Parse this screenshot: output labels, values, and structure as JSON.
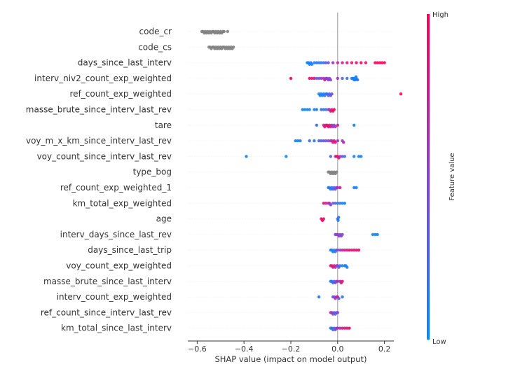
{
  "chart_data": {
    "type": "scatter",
    "subtype": "shap-beeswarm",
    "xlabel": "SHAP value (impact on model output)",
    "xlim": [
      -0.64,
      0.24
    ],
    "xticks": [
      -0.6,
      -0.4,
      -0.2,
      0.0,
      0.2
    ],
    "xtick_labels": [
      "−0.6",
      "−0.4",
      "−0.2",
      "0.0",
      "0.2"
    ],
    "colorbar": {
      "label": "Feature value",
      "high_label": "High",
      "low_label": "Low",
      "high_color": "#ff0052",
      "low_color": "#008bfb",
      "placement": "right"
    },
    "zero_line": true,
    "colors": {
      "no_value": "#808080"
    },
    "features": [
      {
        "name": "code_cr",
        "points": [
          [
            -0.58,
            null
          ],
          [
            -0.575,
            null
          ],
          [
            -0.57,
            null
          ],
          [
            -0.565,
            null
          ],
          [
            -0.56,
            null
          ],
          [
            -0.555,
            null
          ],
          [
            -0.55,
            null
          ],
          [
            -0.545,
            null
          ],
          [
            -0.54,
            null
          ],
          [
            -0.535,
            null
          ],
          [
            -0.53,
            null
          ],
          [
            -0.525,
            null
          ],
          [
            -0.52,
            null
          ],
          [
            -0.515,
            null
          ],
          [
            -0.51,
            null
          ],
          [
            -0.505,
            null
          ],
          [
            -0.5,
            null
          ],
          [
            -0.495,
            null
          ],
          [
            -0.49,
            null
          ],
          [
            -0.485,
            null
          ],
          [
            -0.47,
            null
          ]
        ]
      },
      {
        "name": "code_cs",
        "points": [
          [
            -0.55,
            null
          ],
          [
            -0.545,
            null
          ],
          [
            -0.54,
            null
          ],
          [
            -0.535,
            null
          ],
          [
            -0.53,
            null
          ],
          [
            -0.525,
            null
          ],
          [
            -0.52,
            null
          ],
          [
            -0.515,
            null
          ],
          [
            -0.51,
            null
          ],
          [
            -0.505,
            null
          ],
          [
            -0.5,
            null
          ],
          [
            -0.495,
            null
          ],
          [
            -0.49,
            null
          ],
          [
            -0.485,
            null
          ],
          [
            -0.48,
            null
          ],
          [
            -0.475,
            null
          ],
          [
            -0.47,
            null
          ],
          [
            -0.465,
            null
          ],
          [
            -0.46,
            null
          ],
          [
            -0.455,
            null
          ],
          [
            -0.45,
            null
          ],
          [
            -0.445,
            null
          ]
        ]
      },
      {
        "name": "days_since_last_interv",
        "points": [
          [
            -0.13,
            0.05
          ],
          [
            -0.125,
            0.1
          ],
          [
            -0.12,
            0.05
          ],
          [
            -0.115,
            0.15
          ],
          [
            -0.11,
            0.1
          ],
          [
            -0.1,
            0.08
          ],
          [
            -0.09,
            0.2
          ],
          [
            -0.08,
            0.1
          ],
          [
            -0.07,
            0.1
          ],
          [
            -0.06,
            0.25
          ],
          [
            -0.05,
            0.3
          ],
          [
            -0.04,
            0.4
          ],
          [
            -0.02,
            0.6
          ],
          [
            0.0,
            0.7
          ],
          [
            0.02,
            0.75
          ],
          [
            0.04,
            0.8
          ],
          [
            0.06,
            0.9
          ],
          [
            0.08,
            0.92
          ],
          [
            0.1,
            0.95
          ],
          [
            0.12,
            0.9
          ],
          [
            0.16,
            0.95
          ],
          [
            0.17,
            1.0
          ],
          [
            0.18,
            0.95
          ],
          [
            0.19,
            1.0
          ],
          [
            0.2,
            0.95
          ]
        ]
      },
      {
        "name": "interv_niv2_count_exp_weighted",
        "points": [
          [
            -0.2,
            1.0
          ],
          [
            -0.12,
            0.9
          ],
          [
            -0.11,
            0.85
          ],
          [
            -0.1,
            0.9
          ],
          [
            -0.09,
            0.3
          ],
          [
            -0.08,
            0.4
          ],
          [
            -0.07,
            0.6
          ],
          [
            -0.06,
            0.65
          ],
          [
            -0.055,
            0.7
          ],
          [
            -0.05,
            0.55
          ],
          [
            -0.045,
            0.6
          ],
          [
            -0.04,
            0.5
          ],
          [
            -0.035,
            0.55
          ],
          [
            -0.03,
            0.5
          ],
          [
            0.0,
            0.6
          ],
          [
            0.02,
            0.3
          ],
          [
            0.04,
            0.2
          ],
          [
            0.06,
            0.1
          ],
          [
            0.065,
            0.05
          ],
          [
            0.07,
            0.05
          ],
          [
            0.072,
            0.1
          ],
          [
            0.075,
            0.05
          ],
          [
            0.078,
            0.05
          ],
          [
            0.08,
            0.1
          ],
          [
            0.085,
            0.1
          ]
        ]
      },
      {
        "name": "ref_count_exp_weighted",
        "points": [
          [
            -0.08,
            0.1
          ],
          [
            -0.075,
            0.05
          ],
          [
            -0.07,
            0.1
          ],
          [
            -0.065,
            0.05
          ],
          [
            -0.06,
            0.1
          ],
          [
            -0.055,
            0.15
          ],
          [
            -0.05,
            0.1
          ],
          [
            -0.045,
            0.2
          ],
          [
            -0.04,
            0.3
          ],
          [
            -0.035,
            0.25
          ],
          [
            -0.03,
            0.3
          ],
          [
            -0.025,
            0.4
          ],
          [
            0.27,
            1.0
          ]
        ]
      },
      {
        "name": "masse_brute_since_interv_last_rev",
        "points": [
          [
            -0.15,
            0.05
          ],
          [
            -0.14,
            0.05
          ],
          [
            -0.13,
            0.1
          ],
          [
            -0.12,
            0.05
          ],
          [
            -0.1,
            0.1
          ],
          [
            -0.09,
            0.1
          ],
          [
            -0.07,
            0.15
          ],
          [
            -0.06,
            0.2
          ],
          [
            -0.05,
            0.25
          ],
          [
            -0.04,
            0.4
          ],
          [
            -0.035,
            0.6
          ],
          [
            -0.03,
            0.8
          ],
          [
            -0.025,
            0.9
          ],
          [
            -0.02,
            0.95
          ],
          [
            -0.015,
            1.0
          ]
        ]
      },
      {
        "name": "tare",
        "points": [
          [
            -0.09,
            0.2
          ],
          [
            -0.06,
            0.8
          ],
          [
            -0.055,
            0.9
          ],
          [
            -0.05,
            0.85
          ],
          [
            -0.045,
            0.9
          ],
          [
            -0.04,
            0.95
          ],
          [
            -0.035,
            0.9
          ],
          [
            -0.03,
            0.85
          ],
          [
            -0.025,
            0.7
          ],
          [
            -0.02,
            0.6
          ],
          [
            -0.015,
            0.5
          ],
          [
            -0.01,
            0.6
          ],
          [
            0.0,
            0.8
          ],
          [
            0.07,
            0.05
          ]
        ]
      },
      {
        "name": "voy_m_x_km_since_interv_last_rev",
        "points": [
          [
            -0.18,
            0.05
          ],
          [
            -0.17,
            0.05
          ],
          [
            -0.16,
            0.1
          ],
          [
            -0.12,
            0.2
          ],
          [
            -0.1,
            0.15
          ],
          [
            -0.08,
            0.3
          ],
          [
            -0.07,
            0.25
          ],
          [
            -0.06,
            0.4
          ],
          [
            -0.05,
            0.35
          ],
          [
            -0.04,
            0.5
          ],
          [
            -0.03,
            0.6
          ],
          [
            -0.025,
            0.65
          ],
          [
            -0.02,
            0.8
          ],
          [
            -0.015,
            0.85
          ],
          [
            -0.01,
            0.9
          ],
          [
            0.0,
            0.6
          ],
          [
            0.02,
            0.5
          ],
          [
            0.025,
            0.7
          ]
        ]
      },
      {
        "name": "voy_count_since_interv_last_rev",
        "points": [
          [
            -0.39,
            0.05
          ],
          [
            -0.22,
            0.05
          ],
          [
            -0.03,
            0.3
          ],
          [
            -0.01,
            0.5
          ],
          [
            -0.005,
            0.9
          ],
          [
            0.0,
            1.0
          ],
          [
            0.005,
            0.8
          ],
          [
            0.01,
            0.6
          ],
          [
            0.02,
            0.4
          ],
          [
            0.03,
            0.2
          ],
          [
            0.07,
            0.05
          ],
          [
            0.09,
            0.05
          ],
          [
            0.1,
            0.05
          ]
        ]
      },
      {
        "name": "type_bog",
        "points": [
          [
            -0.04,
            null
          ],
          [
            -0.035,
            null
          ],
          [
            -0.03,
            null
          ],
          [
            -0.025,
            null
          ],
          [
            -0.02,
            null
          ],
          [
            -0.015,
            null
          ],
          [
            -0.01,
            null
          ],
          [
            -0.005,
            null
          ]
        ]
      },
      {
        "name": "ref_count_exp_weighted_1",
        "points": [
          [
            -0.04,
            0.1
          ],
          [
            -0.035,
            0.15
          ],
          [
            -0.03,
            0.1
          ],
          [
            -0.025,
            0.15
          ],
          [
            -0.02,
            0.2
          ],
          [
            -0.015,
            0.3
          ],
          [
            -0.01,
            0.4
          ],
          [
            -0.005,
            0.5
          ],
          [
            0.0,
            0.6
          ],
          [
            0.01,
            0.8
          ],
          [
            0.07,
            0.05
          ],
          [
            0.08,
            0.1
          ]
        ]
      },
      {
        "name": "km_total_exp_weighted",
        "points": [
          [
            -0.06,
            0.9
          ],
          [
            -0.05,
            0.8
          ],
          [
            -0.04,
            0.7
          ],
          [
            -0.035,
            0.6
          ],
          [
            -0.03,
            0.5
          ],
          [
            -0.02,
            0.4
          ],
          [
            -0.01,
            0.3
          ],
          [
            0.0,
            0.2
          ],
          [
            0.01,
            0.15
          ],
          [
            0.02,
            0.1
          ],
          [
            0.03,
            0.05
          ]
        ]
      },
      {
        "name": "age",
        "points": [
          [
            -0.07,
            0.95
          ],
          [
            -0.065,
            1.0
          ],
          [
            -0.06,
            0.9
          ],
          [
            0.0,
            0.2
          ],
          [
            0.002,
            0.1
          ],
          [
            0.004,
            0.15
          ]
        ]
      },
      {
        "name": "interv_days_since_last_rev",
        "points": [
          [
            -0.01,
            0.5
          ],
          [
            -0.005,
            0.4
          ],
          [
            0.0,
            0.5
          ],
          [
            0.005,
            0.6
          ],
          [
            0.01,
            0.55
          ],
          [
            0.015,
            0.45
          ],
          [
            0.02,
            0.4
          ],
          [
            0.15,
            0.05
          ],
          [
            0.16,
            0.1
          ],
          [
            0.17,
            0.05
          ]
        ]
      },
      {
        "name": "days_since_last_trip",
        "points": [
          [
            -0.03,
            0.05
          ],
          [
            -0.025,
            0.1
          ],
          [
            -0.02,
            0.05
          ],
          [
            -0.015,
            0.1
          ],
          [
            -0.01,
            0.15
          ],
          [
            -0.005,
            0.2
          ],
          [
            0.0,
            0.4
          ],
          [
            0.01,
            0.6
          ],
          [
            0.02,
            0.7
          ],
          [
            0.03,
            0.8
          ],
          [
            0.04,
            0.85
          ],
          [
            0.05,
            0.9
          ],
          [
            0.06,
            0.8
          ],
          [
            0.07,
            0.85
          ],
          [
            0.08,
            0.9
          ],
          [
            0.09,
            0.95
          ]
        ]
      },
      {
        "name": "voy_count_exp_weighted",
        "points": [
          [
            -0.03,
            0.9
          ],
          [
            -0.025,
            0.85
          ],
          [
            -0.02,
            0.8
          ],
          [
            -0.015,
            0.85
          ],
          [
            -0.01,
            0.7
          ],
          [
            -0.005,
            0.6
          ],
          [
            0.0,
            0.5
          ],
          [
            0.005,
            0.3
          ],
          [
            0.01,
            0.2
          ],
          [
            0.02,
            0.1
          ],
          [
            0.03,
            0.1
          ],
          [
            0.035,
            0.05
          ],
          [
            0.04,
            0.1
          ]
        ]
      },
      {
        "name": "masse_brute_since_last_interv",
        "points": [
          [
            -0.03,
            0.1
          ],
          [
            -0.025,
            0.15
          ],
          [
            -0.02,
            0.2
          ],
          [
            -0.015,
            0.3
          ],
          [
            -0.01,
            0.4
          ],
          [
            -0.005,
            0.5
          ],
          [
            0.0,
            0.6
          ],
          [
            0.01,
            0.7
          ],
          [
            0.015,
            0.8
          ],
          [
            0.02,
            0.9
          ]
        ]
      },
      {
        "name": "interv_count_exp_weighted",
        "points": [
          [
            -0.08,
            0.1
          ],
          [
            -0.02,
            0.3
          ],
          [
            -0.015,
            0.4
          ],
          [
            -0.01,
            0.6
          ],
          [
            -0.005,
            0.7
          ],
          [
            0.0,
            0.8
          ],
          [
            0.005,
            0.3
          ],
          [
            0.02,
            0.2
          ]
        ]
      },
      {
        "name": "ref_count_since_interv_last_rev",
        "points": [
          [
            -0.03,
            0.7
          ],
          [
            -0.025,
            0.6
          ],
          [
            -0.02,
            0.5
          ],
          [
            -0.015,
            0.4
          ],
          [
            -0.01,
            0.3
          ],
          [
            -0.005,
            0.2
          ],
          [
            0.0,
            0.5
          ]
        ]
      },
      {
        "name": "km_total_since_last_interv",
        "points": [
          [
            -0.03,
            0.1
          ],
          [
            -0.025,
            0.15
          ],
          [
            -0.02,
            0.2
          ],
          [
            -0.015,
            0.3
          ],
          [
            -0.01,
            0.4
          ],
          [
            -0.005,
            0.5
          ],
          [
            0.0,
            0.6
          ],
          [
            0.01,
            0.7
          ],
          [
            0.02,
            0.8
          ],
          [
            0.03,
            0.85
          ],
          [
            0.04,
            0.9
          ],
          [
            0.05,
            0.95
          ]
        ]
      }
    ]
  }
}
